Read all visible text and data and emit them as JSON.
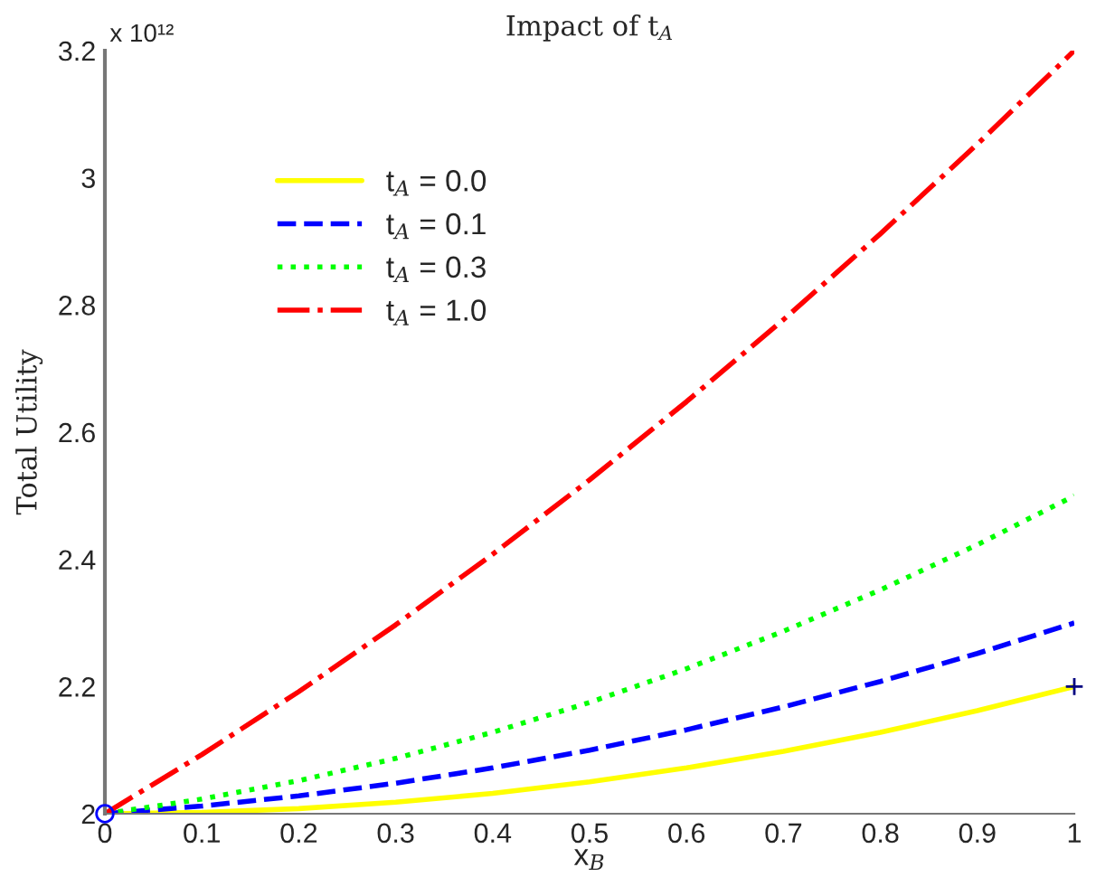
{
  "chart_data": {
    "type": "line",
    "title": "Impact of t$_{A}$",
    "xlabel": "x$_{B}$",
    "ylabel": "Total Utility",
    "x": [
      0,
      0.1,
      0.2,
      0.3,
      0.4,
      0.5,
      0.6,
      0.7,
      0.8,
      0.9,
      1
    ],
    "series": [
      {
        "name": "t$_{A}$ = 0.0",
        "color": "#ffff00",
        "line_style": "solid",
        "values": [
          2.0,
          2.002,
          2.008,
          2.018,
          2.032,
          2.05,
          2.072,
          2.098,
          2.128,
          2.162,
          2.2
        ]
      },
      {
        "name": "t$_{A}$ = 0.1",
        "color": "#0000ff",
        "line_style": "dashed",
        "values": [
          2.0,
          2.012,
          2.028,
          2.048,
          2.072,
          2.1,
          2.132,
          2.168,
          2.208,
          2.252,
          2.3
        ]
      },
      {
        "name": "t$_{A}$ = 0.3",
        "color": "#00ff00",
        "line_style": "dotted",
        "values": [
          2.0,
          2.023,
          2.052,
          2.087,
          2.128,
          2.175,
          2.228,
          2.287,
          2.352,
          2.423,
          2.5
        ]
      },
      {
        "name": "t$_{A}$ = 1.0",
        "color": "#ff0000",
        "line_style": "dashdot",
        "values": [
          2.0,
          2.093,
          2.192,
          2.297,
          2.408,
          2.525,
          2.648,
          2.777,
          2.912,
          3.053,
          3.2
        ]
      },
      {
        "type": "scatter",
        "marker": "circle",
        "color": "#0000ff",
        "x": [
          0
        ],
        "values": [
          2.0
        ]
      },
      {
        "type": "scatter",
        "marker": "cross",
        "color": "#000080",
        "x": [
          1
        ],
        "values": [
          2.2
        ]
      }
    ],
    "annotations": [
      "x 10¹²"
    ],
    "xlim": [
      0,
      1
    ],
    "ylim": [
      2,
      3.2
    ],
    "xticks": [
      0,
      0.1,
      0.2,
      0.3,
      0.4,
      0.5,
      0.6,
      0.7,
      0.8,
      0.9,
      1
    ],
    "yticks": [
      2,
      2.2,
      2.4,
      2.6,
      2.8,
      3,
      3.2
    ],
    "legend": "top left",
    "grid": false
  }
}
